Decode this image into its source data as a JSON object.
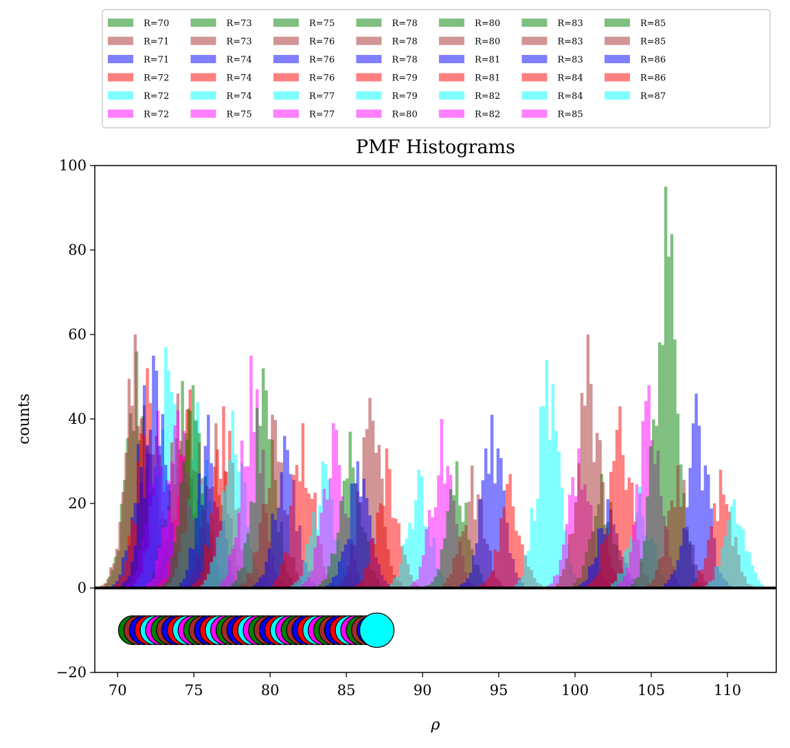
{
  "chart_data": {
    "type": "bar",
    "title": "PMF Histograms",
    "xlabel": "ρ",
    "ylabel": "counts",
    "xlim": [
      68.5,
      113.2
    ],
    "ylim": [
      -20,
      100
    ],
    "xticks": [
      "70",
      "75",
      "80",
      "85",
      "90",
      "95",
      "100",
      "105",
      "110"
    ],
    "xtick_values": [
      70,
      75,
      80,
      85,
      90,
      95,
      100,
      105,
      110
    ],
    "yticks": [
      "−20",
      "0",
      "20",
      "40",
      "60",
      "80",
      "100"
    ],
    "ytick_values": [
      -20,
      0,
      20,
      40,
      60,
      80,
      100
    ],
    "legend_placement": "above plot, 9 columns",
    "grid": false,
    "bar_alpha": 0.5,
    "series": [
      {
        "name": "R=70",
        "color": "#008000",
        "center": 71.3,
        "peak": 56
      },
      {
        "name": "R=71",
        "color": "#a52a2a",
        "center": 71.2,
        "peak": 60
      },
      {
        "name": "R=71",
        "color": "#0000ff",
        "center": 71.8,
        "peak": 48
      },
      {
        "name": "R=72",
        "color": "#ff0000",
        "center": 72.0,
        "peak": 52
      },
      {
        "name": "R=72",
        "color": "#00ffff",
        "center": 73.2,
        "peak": 57
      },
      {
        "name": "R=72",
        "color": "#ff00ff",
        "center": 72.7,
        "peak": 42
      },
      {
        "name": "R=73",
        "color": "#008000",
        "center": 74.3,
        "peak": 49
      },
      {
        "name": "R=73",
        "color": "#a52a2a",
        "center": 74.0,
        "peak": 46
      },
      {
        "name": "R=74",
        "color": "#0000ff",
        "center": 72.4,
        "peak": 55
      },
      {
        "name": "R=74",
        "color": "#ff0000",
        "center": 74.8,
        "peak": 47
      },
      {
        "name": "R=74",
        "color": "#00ffff",
        "center": 75.3,
        "peak": 44
      },
      {
        "name": "R=75",
        "color": "#ff00ff",
        "center": 74.0,
        "peak": 42
      },
      {
        "name": "R=75",
        "color": "#008000",
        "center": 75.0,
        "peak": 48
      },
      {
        "name": "R=76",
        "color": "#a52a2a",
        "center": 76.5,
        "peak": 39
      },
      {
        "name": "R=76",
        "color": "#0000ff",
        "center": 76.0,
        "peak": 41
      },
      {
        "name": "R=76",
        "color": "#ff0000",
        "center": 77.0,
        "peak": 43
      },
      {
        "name": "R=77",
        "color": "#00ffff",
        "center": 77.6,
        "peak": 42
      },
      {
        "name": "R=77",
        "color": "#ff00ff",
        "center": 78.8,
        "peak": 55
      },
      {
        "name": "R=78",
        "color": "#008000",
        "center": 79.6,
        "peak": 52
      },
      {
        "name": "R=78",
        "color": "#a52a2a",
        "center": 80.2,
        "peak": 41
      },
      {
        "name": "R=78",
        "color": "#0000ff",
        "center": 81.0,
        "peak": 36
      },
      {
        "name": "R=79",
        "color": "#ff0000",
        "center": 82.2,
        "peak": 39
      },
      {
        "name": "R=79",
        "color": "#00ffff",
        "center": 83.5,
        "peak": 30
      },
      {
        "name": "R=80",
        "color": "#ff00ff",
        "center": 84.2,
        "peak": 39
      },
      {
        "name": "R=80",
        "color": "#008000",
        "center": 85.3,
        "peak": 37
      },
      {
        "name": "R=80",
        "color": "#a52a2a",
        "center": 86.6,
        "peak": 45
      },
      {
        "name": "R=81",
        "color": "#0000ff",
        "center": 85.8,
        "peak": 30
      },
      {
        "name": "R=81",
        "color": "#ff0000",
        "center": 87.7,
        "peak": 33
      },
      {
        "name": "R=82",
        "color": "#00ffff",
        "center": 89.8,
        "peak": 28
      },
      {
        "name": "R=82",
        "color": "#ff00ff",
        "center": 91.3,
        "peak": 40
      },
      {
        "name": "R=83",
        "color": "#008000",
        "center": 92.3,
        "peak": 30
      },
      {
        "name": "R=83",
        "color": "#a52a2a",
        "center": 93.3,
        "peak": 29
      },
      {
        "name": "R=83",
        "color": "#0000ff",
        "center": 94.6,
        "peak": 41
      },
      {
        "name": "R=84",
        "color": "#ff0000",
        "center": 95.8,
        "peak": 27
      },
      {
        "name": "R=84",
        "color": "#00ffff",
        "center": 98.2,
        "peak": 54
      },
      {
        "name": "R=85",
        "color": "#ff00ff",
        "center": 100.3,
        "peak": 33
      },
      {
        "name": "R=85",
        "color": "#008000",
        "center": 101.8,
        "peak": 27
      },
      {
        "name": "R=85",
        "color": "#a52a2a",
        "center": 100.9,
        "peak": 60
      },
      {
        "name": "R=86",
        "color": "#0000ff",
        "center": 102.2,
        "peak": 21
      },
      {
        "name": "R=86",
        "color": "#ff0000",
        "center": 103.0,
        "peak": 43
      },
      {
        "name": "R=87",
        "color": "#00ffff",
        "center": 104.3,
        "peak": 24
      }
    ],
    "extra_histograms": [
      {
        "color": "#ff00ff",
        "center": 104.9,
        "peak": 48
      },
      {
        "color": "#008000",
        "center": 106.0,
        "peak": 95
      },
      {
        "color": "#a52a2a",
        "center": 106.8,
        "peak": 29
      },
      {
        "color": "#0000ff",
        "center": 108.0,
        "peak": 46
      },
      {
        "color": "#ff0000",
        "center": 109.6,
        "peak": 28
      },
      {
        "color": "#00ffff",
        "center": 110.5,
        "peak": 21
      }
    ],
    "markers": {
      "y": -10,
      "x_start": 71.0,
      "x_end": 87.0,
      "colors": [
        "#008000",
        "#a52a2a",
        "#0000ff",
        "#ff0000",
        "#00ffff",
        "#ff00ff"
      ]
    }
  }
}
